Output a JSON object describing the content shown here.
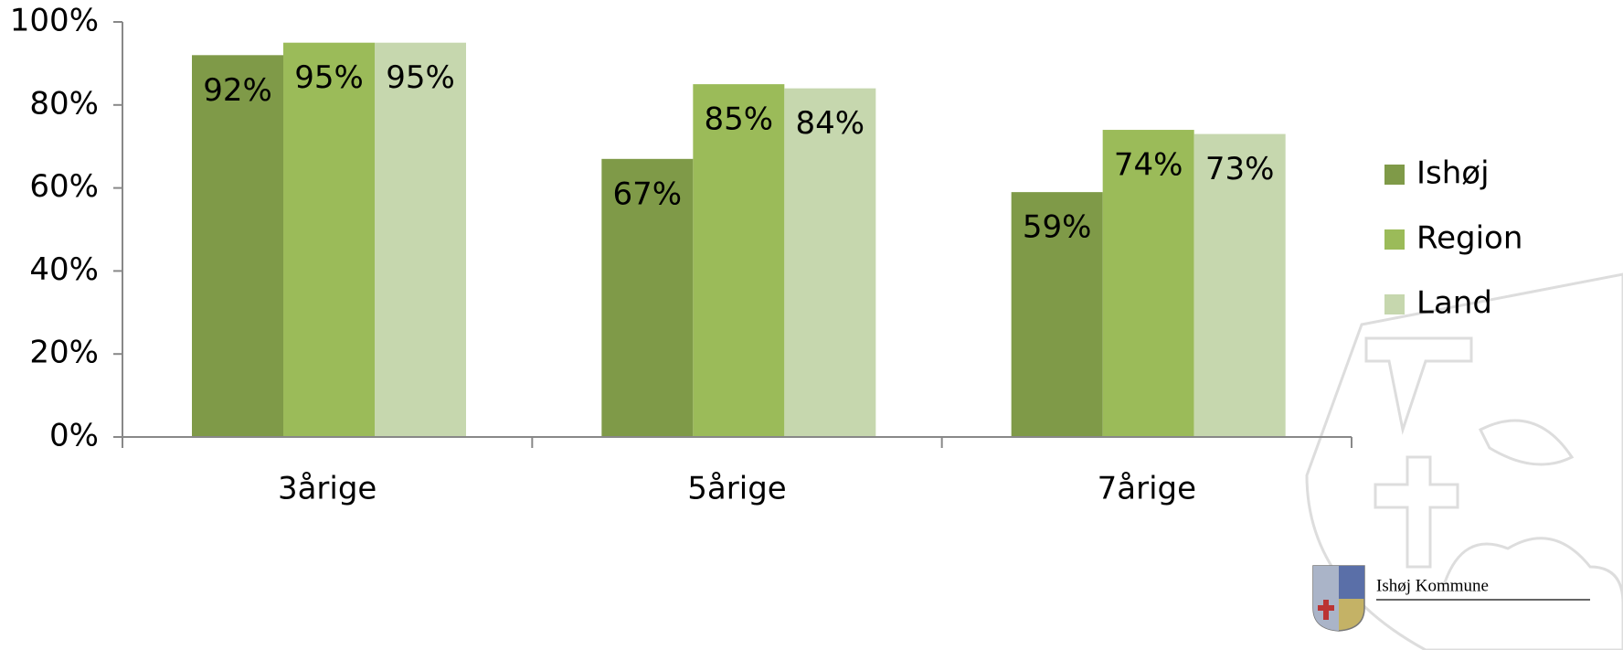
{
  "chart_data": {
    "type": "bar",
    "categories": [
      "3årige",
      "5årige",
      "7årige"
    ],
    "series": [
      {
        "name": "Ishøj",
        "color": "#7f9a48",
        "values": [
          92,
          67,
          59
        ],
        "value_labels": [
          "92%",
          "67%",
          "59%"
        ]
      },
      {
        "name": "Region",
        "color": "#9bbb59",
        "values": [
          95,
          85,
          74
        ],
        "value_labels": [
          "95%",
          "85%",
          "74%"
        ]
      },
      {
        "name": "Land",
        "color": "#c6d7ae",
        "values": [
          95,
          84,
          73
        ],
        "value_labels": [
          "95%",
          "84%",
          "73%"
        ]
      }
    ],
    "ylim": [
      0,
      100
    ],
    "yticks": [
      {
        "value": 0,
        "label": "0%"
      },
      {
        "value": 20,
        "label": "20%"
      },
      {
        "value": 40,
        "label": "40%"
      },
      {
        "value": 60,
        "label": "60%"
      },
      {
        "value": 80,
        "label": "80%"
      },
      {
        "value": 100,
        "label": "100%"
      }
    ],
    "grid": false,
    "legend": "right"
  },
  "logo": {
    "text": "Ishøj Kommune"
  }
}
